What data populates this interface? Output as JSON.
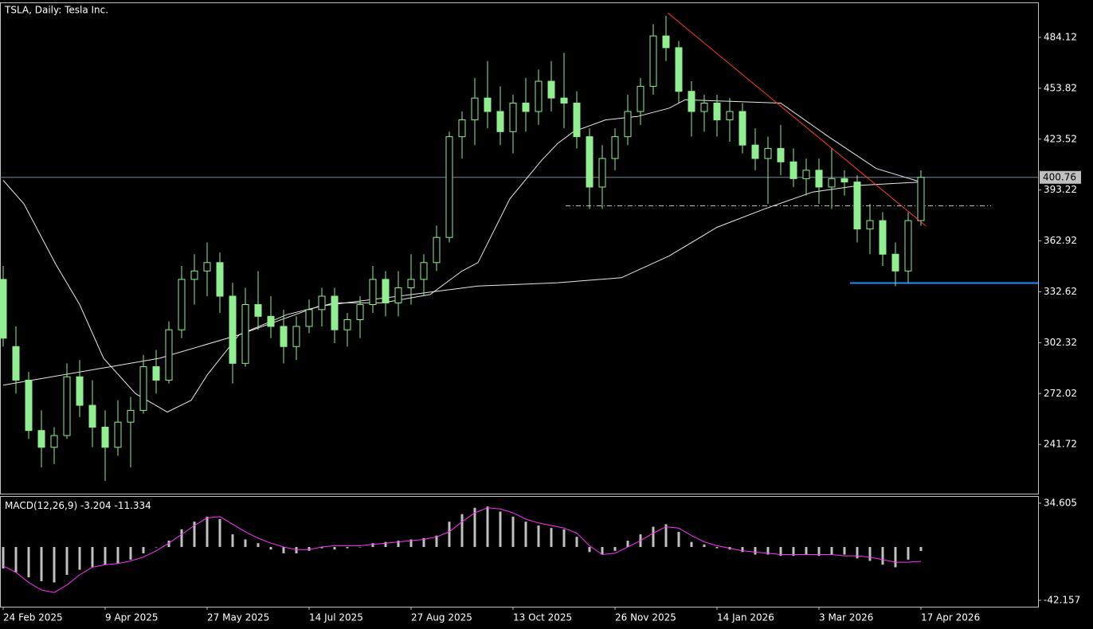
{
  "chart_data": [
    {
      "type": "candlestick",
      "title": "TSLA, Daily:  Tesla Inc.",
      "x": [
        0,
        4,
        8,
        12,
        16,
        20,
        24,
        28,
        32,
        36,
        40,
        44,
        48,
        52,
        56,
        60,
        64,
        68,
        72,
        76,
        80,
        84,
        88,
        92,
        96,
        100,
        104,
        108,
        112,
        116,
        120,
        124,
        128,
        132,
        136,
        140,
        144,
        148,
        152,
        156,
        160,
        164,
        168,
        172,
        176,
        180,
        184,
        188,
        192,
        196,
        200,
        204,
        208,
        212,
        216,
        220,
        224,
        228,
        232,
        236,
        240,
        244,
        248,
        252,
        256,
        260,
        264,
        268,
        272,
        276,
        280,
        284,
        288
      ],
      "open": [
        340,
        300,
        280,
        250,
        240,
        247,
        282,
        265,
        252,
        240,
        255,
        262,
        288,
        280,
        310,
        340,
        345,
        350,
        330,
        290,
        325,
        318,
        312,
        300,
        312,
        322,
        330,
        310,
        316,
        325,
        340,
        326,
        335,
        340,
        350,
        365,
        425,
        435,
        448,
        440,
        428,
        445,
        440,
        458,
        448,
        445,
        425,
        395,
        412,
        425,
        440,
        455,
        485,
        478,
        452,
        440,
        445,
        435,
        440,
        420,
        412,
        418,
        410,
        400,
        405,
        395,
        400,
        398,
        370,
        375,
        355,
        345,
        375
      ],
      "high": [
        348,
        312,
        285,
        262,
        252,
        290,
        292,
        280,
        262,
        268,
        270,
        295,
        298,
        315,
        348,
        355,
        362,
        356,
        338,
        335,
        345,
        330,
        322,
        318,
        328,
        335,
        335,
        320,
        330,
        348,
        345,
        345,
        355,
        355,
        372,
        428,
        440,
        460,
        470,
        455,
        450,
        460,
        465,
        470,
        475,
        452,
        430,
        420,
        430,
        450,
        460,
        492,
        497,
        482,
        458,
        450,
        450,
        448,
        445,
        430,
        425,
        432,
        418,
        412,
        412,
        418,
        405,
        402,
        385,
        380,
        362,
        380,
        405
      ],
      "low": [
        300,
        272,
        245,
        228,
        230,
        245,
        258,
        240,
        220,
        235,
        228,
        260,
        272,
        278,
        305,
        325,
        330,
        320,
        278,
        288,
        310,
        305,
        290,
        292,
        308,
        312,
        302,
        300,
        305,
        320,
        318,
        318,
        325,
        330,
        345,
        362,
        412,
        420,
        430,
        420,
        415,
        428,
        432,
        440,
        430,
        418,
        382,
        382,
        405,
        420,
        432,
        450,
        470,
        445,
        425,
        428,
        425,
        422,
        415,
        405,
        385,
        402,
        395,
        390,
        385,
        382,
        390,
        362,
        355,
        348,
        336,
        338,
        372
      ],
      "close": [
        305,
        280,
        250,
        240,
        247,
        282,
        265,
        252,
        240,
        255,
        262,
        288,
        280,
        310,
        340,
        345,
        350,
        330,
        290,
        325,
        318,
        312,
        300,
        312,
        322,
        330,
        310,
        316,
        325,
        340,
        326,
        335,
        340,
        350,
        365,
        425,
        435,
        448,
        440,
        428,
        445,
        440,
        458,
        448,
        445,
        425,
        395,
        412,
        425,
        440,
        455,
        485,
        478,
        452,
        440,
        445,
        435,
        440,
        420,
        412,
        418,
        410,
        400,
        405,
        395,
        400,
        398,
        370,
        375,
        355,
        345,
        375,
        400.76
      ],
      "color": "#90ee90",
      "moving_averages": [
        {
          "color": "#e8e8e8",
          "x": [
            0,
            6.5,
            16.5,
            24,
            31.5,
            41.5,
            51.5,
            59,
            64,
            74,
            89,
            104,
            119,
            134,
            144,
            149,
            159,
            169,
            174,
            179,
            189,
            199,
            209,
            214,
            229,
            244,
            259,
            274,
            288
          ],
          "values": [
            399,
            385,
            349,
            325,
            293,
            272,
            261,
            268,
            283,
            307,
            319,
            326,
            326,
            331,
            345,
            350,
            388,
            411,
            421,
            428,
            435,
            437,
            442,
            447,
            446,
            445,
            425,
            406,
            398
          ]
        },
        {
          "color": "#e8e8e8",
          "x": [
            0,
            49,
            74,
            99,
            124,
            149,
            174,
            194,
            209,
            224,
            239,
            254,
            269,
            288
          ],
          "values": [
            277,
            293,
            307,
            324,
            330,
            336,
            338,
            341,
            354,
            371,
            382,
            392,
            396,
            398
          ]
        }
      ],
      "trendline": {
        "color": "#ff3b30",
        "x": [
          208.5,
          289.5
        ],
        "values": [
          498.8,
          371.9
        ]
      },
      "dashed_level": {
        "color": "#c0c0c0",
        "x": [
          176.5,
          310
        ],
        "value": 383.8
      },
      "support_level": {
        "color": "#1e90ff",
        "x": [
          265.75,
          324.75
        ],
        "value": 337.8
      },
      "price_line": 400.76,
      "xlim": [
        -1,
        324.75
      ],
      "xticks": [
        {
          "value": 0,
          "label": "24 Feb 2025"
        },
        {
          "value": 32,
          "label": "9 Apr 2025"
        },
        {
          "value": 64,
          "label": "27 May 2025"
        },
        {
          "value": 96,
          "label": "14 Jul 2025"
        },
        {
          "value": 128,
          "label": "27 Aug 2025"
        },
        {
          "value": 160,
          "label": "13 Oct 2025"
        },
        {
          "value": 192,
          "label": "26 Nov 2025"
        },
        {
          "value": 224,
          "label": "14 Jan 2026"
        },
        {
          "value": 256,
          "label": "3 Mar 2026"
        },
        {
          "value": 288,
          "label": "17 Apr 2026"
        }
      ],
      "ylim": [
        212.4,
        504.5
      ],
      "yticks": [
        484.12,
        453.82,
        423.52,
        393.22,
        362.92,
        332.62,
        302.32,
        272.02,
        241.72
      ]
    },
    {
      "type": "macd",
      "title": "MACD(12,26,9)",
      "main_value": -3.204,
      "signal_value": -11.334,
      "x": [
        0,
        4,
        8,
        12,
        16,
        20,
        24,
        28,
        32,
        36,
        40,
        44,
        48,
        52,
        56,
        60,
        64,
        68,
        72,
        76,
        80,
        84,
        88,
        92,
        96,
        100,
        104,
        108,
        112,
        116,
        120,
        124,
        128,
        132,
        136,
        140,
        144,
        148,
        152,
        156,
        160,
        164,
        168,
        172,
        176,
        180,
        184,
        188,
        192,
        196,
        200,
        204,
        208,
        212,
        216,
        220,
        224,
        228,
        232,
        236,
        240,
        244,
        248,
        252,
        256,
        260,
        264,
        268,
        272,
        276,
        280,
        284,
        288
      ],
      "histogram": [
        -17,
        -20,
        -24,
        -27,
        -28,
        -22,
        -18,
        -16,
        -14,
        -13,
        -10,
        -5,
        0,
        5,
        14,
        20,
        24,
        22,
        10,
        6,
        3,
        -2,
        -5,
        -5,
        -3,
        -1,
        -2,
        -1,
        0,
        3,
        4,
        5,
        6,
        7,
        9,
        20,
        26,
        31,
        32,
        28,
        24,
        20,
        17,
        15,
        14,
        8,
        -4,
        -6,
        -3,
        5,
        10,
        16,
        18,
        12,
        4,
        2,
        -1,
        -2,
        -4,
        -6,
        -6,
        -7,
        -7,
        -6,
        -7,
        -6,
        -6,
        -9,
        -11,
        -14,
        -16,
        -10,
        -3.204
      ],
      "signal": [
        -15,
        -20,
        -28,
        -34,
        -36,
        -30,
        -22,
        -16,
        -14,
        -13,
        -11,
        -8,
        -3,
        3,
        10,
        17,
        23,
        24,
        18,
        12,
        7,
        3,
        0,
        -2,
        -2,
        0,
        1,
        1,
        1,
        2,
        3,
        4,
        5,
        6,
        8,
        12,
        20,
        27,
        31,
        30,
        27,
        22,
        19,
        17,
        15,
        11,
        1,
        -6,
        -5,
        0,
        5,
        11,
        16,
        15,
        9,
        4,
        1,
        -1,
        -3,
        -4,
        -5,
        -6,
        -6,
        -6,
        -6,
        -6,
        -7,
        -7,
        -8,
        -10,
        -12,
        -12,
        -11.334
      ],
      "histogram_color": "#c0c0c0",
      "signal_color": "#ff33ff",
      "xlim": [
        -1,
        324.75
      ],
      "ylim": [
        -47.19,
        39.64
      ],
      "yticks": [
        34.605,
        -42.157
      ]
    }
  ]
}
